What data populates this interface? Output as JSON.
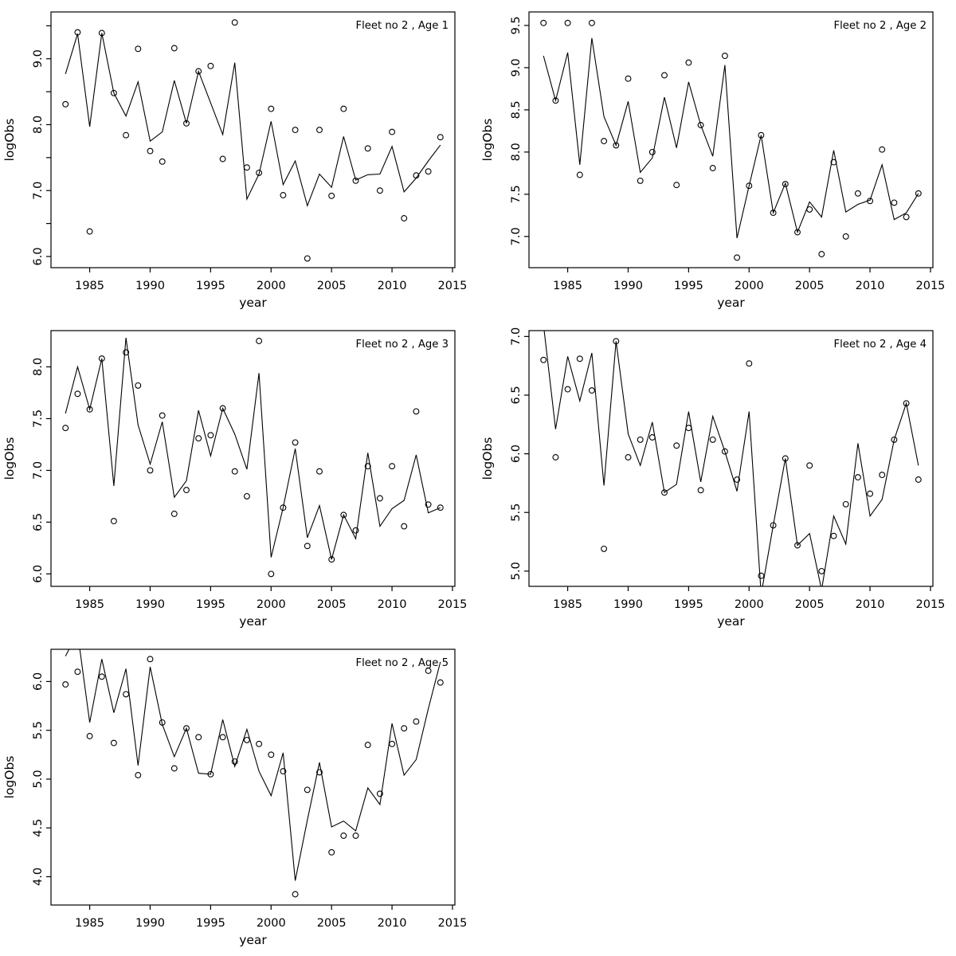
{
  "figure": {
    "background": "#ffffff",
    "text_color": "#000000",
    "line_color": "#000000",
    "marker": "open-circle"
  },
  "chart_data": [
    {
      "type": "line",
      "title": "Fleet no 2 , Age 1",
      "xlabel": "year",
      "ylabel": "logObs",
      "grid": false,
      "legend": null,
      "xlim": [
        1981.8,
        2015.2
      ],
      "ylim": [
        5.83,
        9.71
      ],
      "xticks": [
        1985,
        1990,
        1995,
        2000,
        2005,
        2010,
        2015
      ],
      "yticks": [
        6.0,
        7.0,
        8.0,
        9.0
      ],
      "yticks_minor": [
        6.5,
        7.5,
        8.5,
        9.5
      ],
      "x": [
        1983,
        1984,
        1985,
        1986,
        1987,
        1988,
        1989,
        1990,
        1991,
        1992,
        1993,
        1994,
        1995,
        1996,
        1997,
        1998,
        1999,
        2000,
        2001,
        2002,
        2003,
        2004,
        2005,
        2006,
        2007,
        2008,
        2009,
        2010,
        2011,
        2012,
        2013,
        2014
      ],
      "series": [
        {
          "name": "fitted line",
          "style": "line",
          "values": [
            8.77,
            9.38,
            7.97,
            9.39,
            8.48,
            8.13,
            8.65,
            7.75,
            7.89,
            8.67,
            8.02,
            8.81,
            8.33,
            7.85,
            8.94,
            6.87,
            7.25,
            8.05,
            7.09,
            7.45,
            6.77,
            7.25,
            7.05,
            7.82,
            7.16,
            7.24,
            7.25,
            7.67,
            6.98,
            7.19,
            7.45,
            7.69
          ]
        },
        {
          "name": "observations",
          "style": "points",
          "values": [
            8.31,
            9.4,
            6.38,
            9.39,
            8.48,
            7.84,
            9.15,
            7.6,
            7.44,
            9.16,
            8.02,
            8.81,
            8.89,
            7.48,
            9.55,
            7.35,
            7.27,
            8.24,
            6.93,
            7.92,
            5.97,
            7.92,
            6.92,
            8.24,
            7.15,
            7.64,
            7.0,
            7.89,
            6.58,
            7.23,
            7.29,
            7.81
          ]
        }
      ]
    },
    {
      "type": "line",
      "title": "Fleet no 2 , Age 2",
      "xlabel": "year",
      "ylabel": "logObs",
      "grid": false,
      "legend": null,
      "xlim": [
        1981.8,
        2015.2
      ],
      "ylim": [
        6.63,
        9.66
      ],
      "xticks": [
        1985,
        1990,
        1995,
        2000,
        2005,
        2010,
        2015
      ],
      "yticks": [
        7.0,
        7.5,
        8.0,
        8.5,
        9.0,
        9.5
      ],
      "yticks_minor": [],
      "x": [
        1983,
        1984,
        1985,
        1986,
        1987,
        1988,
        1989,
        1990,
        1991,
        1992,
        1993,
        1994,
        1995,
        1996,
        1997,
        1998,
        1999,
        2000,
        2001,
        2002,
        2003,
        2004,
        2005,
        2006,
        2007,
        2008,
        2009,
        2010,
        2011,
        2012,
        2013,
        2014
      ],
      "series": [
        {
          "name": "fitted line",
          "style": "line",
          "values": [
            9.14,
            8.61,
            9.18,
            7.85,
            9.35,
            8.42,
            8.08,
            8.6,
            7.76,
            7.93,
            8.65,
            8.05,
            8.83,
            8.32,
            7.95,
            9.03,
            6.98,
            7.6,
            8.2,
            7.28,
            7.63,
            7.05,
            7.41,
            7.23,
            8.02,
            7.29,
            7.38,
            7.43,
            7.85,
            7.2,
            7.28,
            7.51
          ]
        },
        {
          "name": "observations",
          "style": "points",
          "values": [
            9.53,
            8.61,
            9.53,
            7.73,
            9.53,
            8.13,
            8.08,
            8.87,
            7.66,
            8.0,
            8.91,
            7.61,
            9.06,
            8.32,
            7.81,
            9.14,
            6.75,
            7.6,
            8.2,
            7.28,
            7.62,
            7.05,
            7.32,
            6.79,
            7.88,
            7.0,
            7.51,
            7.42,
            8.03,
            7.4,
            7.23,
            7.51
          ]
        }
      ]
    },
    {
      "type": "line",
      "title": "Fleet no 2 , Age 3",
      "xlabel": "year",
      "ylabel": "logObs",
      "grid": false,
      "legend": null,
      "xlim": [
        1981.8,
        2015.2
      ],
      "ylim": [
        5.88,
        8.35
      ],
      "xticks": [
        1985,
        1990,
        1995,
        2000,
        2005,
        2010,
        2015
      ],
      "yticks": [
        6.0,
        6.5,
        7.0,
        7.5,
        8.0
      ],
      "yticks_minor": [],
      "x": [
        1983,
        1984,
        1985,
        1986,
        1987,
        1988,
        1989,
        1990,
        1991,
        1992,
        1993,
        1994,
        1995,
        1996,
        1997,
        1998,
        1999,
        2000,
        2001,
        2002,
        2003,
        2004,
        2005,
        2006,
        2007,
        2008,
        2009,
        2010,
        2011,
        2012,
        2013,
        2014
      ],
      "series": [
        {
          "name": "fitted line",
          "style": "line",
          "values": [
            7.55,
            8.0,
            7.59,
            8.08,
            6.85,
            8.28,
            7.44,
            7.06,
            7.47,
            6.74,
            6.9,
            7.58,
            7.14,
            7.6,
            7.35,
            7.01,
            7.94,
            6.16,
            6.64,
            7.21,
            6.35,
            6.66,
            6.14,
            6.57,
            6.34,
            7.17,
            6.46,
            6.63,
            6.71,
            7.15,
            6.59,
            6.64
          ]
        },
        {
          "name": "observations",
          "style": "points",
          "values": [
            7.41,
            7.74,
            7.59,
            8.08,
            6.51,
            8.14,
            7.82,
            7.0,
            7.53,
            6.58,
            6.81,
            7.31,
            7.34,
            7.6,
            6.99,
            6.75,
            8.25,
            6.0,
            6.64,
            7.27,
            6.27,
            6.99,
            6.14,
            6.57,
            6.42,
            7.04,
            6.73,
            7.04,
            6.46,
            7.57,
            6.67,
            6.64
          ]
        }
      ]
    },
    {
      "type": "line",
      "title": "Fleet no 2 , Age 4",
      "xlabel": "year",
      "ylabel": "logObs",
      "grid": false,
      "legend": null,
      "xlim": [
        1981.8,
        2015.2
      ],
      "ylim": [
        4.87,
        7.05
      ],
      "xticks": [
        1985,
        1990,
        1995,
        2000,
        2005,
        2010,
        2015
      ],
      "yticks": [
        5.0,
        5.5,
        6.0,
        6.5,
        7.0
      ],
      "yticks_minor": [],
      "x": [
        1983,
        1984,
        1985,
        1986,
        1987,
        1988,
        1989,
        1990,
        1991,
        1992,
        1993,
        1994,
        1995,
        1996,
        1997,
        1998,
        1999,
        2000,
        2001,
        2002,
        2003,
        2004,
        2005,
        2006,
        2007,
        2008,
        2009,
        2010,
        2011,
        2012,
        2013,
        2014
      ],
      "series": [
        {
          "name": "fitted line",
          "style": "line",
          "values": [
            7.1,
            6.21,
            6.83,
            6.45,
            6.86,
            5.73,
            6.96,
            6.17,
            5.9,
            6.27,
            5.67,
            5.74,
            6.36,
            5.76,
            6.32,
            6.02,
            5.68,
            6.36,
            4.8,
            5.39,
            5.96,
            5.22,
            5.32,
            4.84,
            5.47,
            5.23,
            6.09,
            5.47,
            5.61,
            6.12,
            6.43,
            5.9
          ]
        },
        {
          "name": "observations",
          "style": "points",
          "values": [
            6.8,
            5.97,
            6.55,
            6.81,
            6.54,
            5.19,
            6.96,
            5.97,
            6.12,
            6.14,
            5.67,
            6.07,
            6.22,
            5.69,
            6.12,
            6.02,
            5.78,
            6.77,
            4.96,
            5.39,
            5.96,
            5.22,
            5.9,
            5.0,
            5.3,
            5.57,
            5.8,
            5.66,
            5.82,
            6.12,
            6.43,
            5.78
          ]
        }
      ]
    },
    {
      "type": "line",
      "title": "Fleet no 2 , Age 5",
      "xlabel": "year",
      "ylabel": "logObs",
      "grid": false,
      "legend": null,
      "xlim": [
        1981.8,
        2015.2
      ],
      "ylim": [
        3.71,
        6.33
      ],
      "xticks": [
        1985,
        1990,
        1995,
        2000,
        2005,
        2010,
        2015
      ],
      "yticks": [
        4.0,
        4.5,
        5.0,
        5.5,
        6.0
      ],
      "yticks_minor": [],
      "x": [
        1983,
        1984,
        1985,
        1986,
        1987,
        1988,
        1989,
        1990,
        1991,
        1992,
        1993,
        1994,
        1995,
        1996,
        1997,
        1998,
        1999,
        2000,
        2001,
        2002,
        2003,
        2004,
        2005,
        2006,
        2007,
        2008,
        2009,
        2010,
        2011,
        2012,
        2013,
        2014
      ],
      "series": [
        {
          "name": "fitted line",
          "style": "line",
          "values": [
            6.26,
            6.5,
            5.58,
            6.23,
            5.68,
            6.13,
            5.14,
            6.15,
            5.56,
            5.23,
            5.52,
            5.06,
            5.05,
            5.61,
            5.13,
            5.51,
            5.08,
            4.83,
            5.27,
            3.96,
            4.58,
            5.17,
            4.51,
            4.57,
            4.47,
            4.91,
            4.74,
            5.57,
            5.04,
            5.2,
            5.72,
            6.2
          ]
        },
        {
          "name": "observations",
          "style": "points",
          "values": [
            5.97,
            6.1,
            5.44,
            6.05,
            5.37,
            5.87,
            5.04,
            6.23,
            5.58,
            5.11,
            5.52,
            5.43,
            5.05,
            5.43,
            5.18,
            5.4,
            5.36,
            5.25,
            5.08,
            3.82,
            4.89,
            5.07,
            4.25,
            4.42,
            4.42,
            5.35,
            4.85,
            5.36,
            5.52,
            5.59,
            6.11,
            5.99
          ]
        }
      ]
    }
  ]
}
